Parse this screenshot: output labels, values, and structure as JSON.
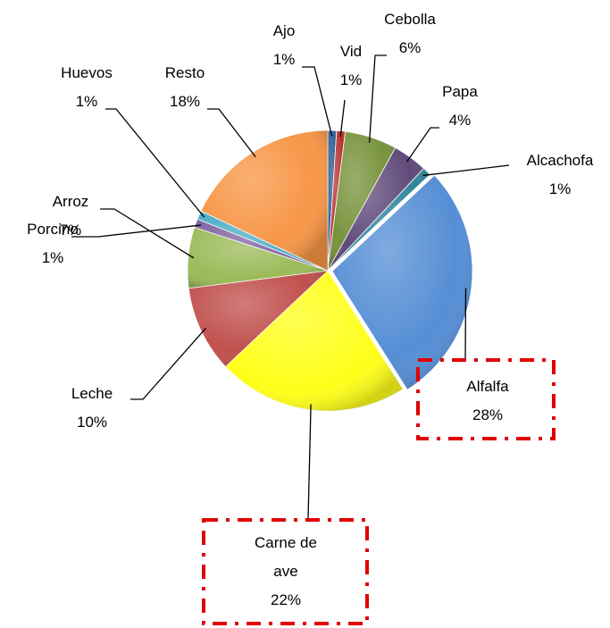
{
  "chart_data": {
    "type": "pie",
    "categories": [
      "Ajo",
      "Vid",
      "Cebolla",
      "Papa",
      "Alcachofa",
      "Alfalfa",
      "Carne de ave",
      "Leche",
      "Arroz",
      "Porcino",
      "Huevos",
      "Resto"
    ],
    "values": [
      1,
      1,
      6,
      4,
      1,
      28,
      22,
      10,
      7,
      1,
      1,
      18
    ],
    "value_labels": [
      "1%",
      "1%",
      "6%",
      "4%",
      "1%",
      "28%",
      "22%",
      "10%",
      "7%",
      "1%",
      "1%",
      "18%"
    ],
    "colors": [
      "#2e5f93",
      "#b8312f",
      "#77933c",
      "#604a7b",
      "#31859c",
      "#558ed5",
      "#ffff1a",
      "#c0504d",
      "#9bbb59",
      "#8064a2",
      "#4bacc6",
      "#f79646"
    ]
  }
}
